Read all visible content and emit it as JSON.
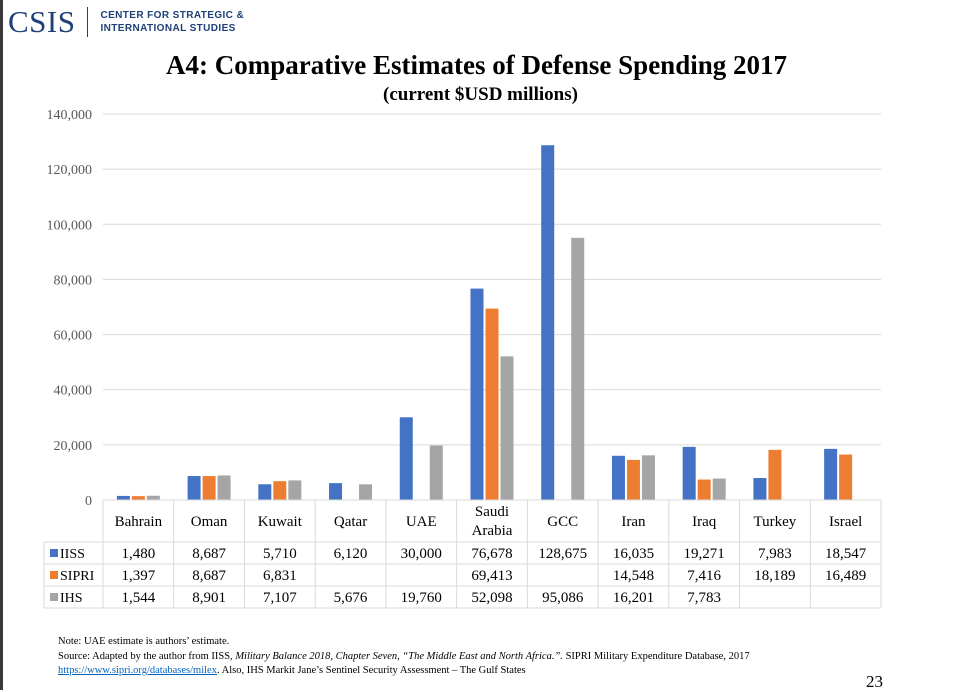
{
  "header": {
    "logo_mark": "CSIS",
    "logo_line1": "CENTER FOR STRATEGIC &",
    "logo_line2": "INTERNATIONAL STUDIES"
  },
  "colors": {
    "IISS": "#4472c4",
    "SIPRI": "#ed7d31",
    "IHS": "#a5a5a5",
    "brand": "#1f3f77"
  },
  "chart_data": {
    "type": "bar",
    "title": "A4: Comparative Estimates of Defense Spending 2017",
    "subtitle": "(current $USD millions)",
    "categories": [
      "Bahrain",
      "Oman",
      "Kuwait",
      "Qatar",
      "UAE",
      "Saudi Arabia",
      "GCC",
      "Iran",
      "Iraq",
      "Turkey",
      "Israel"
    ],
    "series": [
      {
        "name": "IISS",
        "values": [
          1480,
          8687,
          5710,
          6120,
          30000,
          76678,
          128675,
          16035,
          19271,
          7983,
          18547
        ]
      },
      {
        "name": "SIPRI",
        "values": [
          1397,
          8687,
          6831,
          null,
          null,
          69413,
          null,
          14548,
          7416,
          18189,
          16489
        ]
      },
      {
        "name": "IHS",
        "values": [
          1544,
          8901,
          7107,
          5676,
          19760,
          52098,
          95086,
          16201,
          7783,
          null,
          null
        ]
      }
    ],
    "table_values": [
      [
        "1,480",
        "8,687",
        "5,710",
        "6,120",
        "30,000",
        "76,678",
        "128,675",
        "16,035",
        "19,271",
        "7,983",
        "18,547"
      ],
      [
        "1,397",
        "8,687",
        "6,831",
        "",
        "",
        "69,413",
        "",
        "14,548",
        "7,416",
        "18,189",
        "16,489"
      ],
      [
        "1,544",
        "8,901",
        "7,107",
        "5,676",
        "19,760",
        "52,098",
        "95,086",
        "16,201",
        "7,783",
        "",
        ""
      ]
    ],
    "yticks": [
      "0",
      "20,000",
      "40,000",
      "60,000",
      "80,000",
      "100,000",
      "120,000",
      "140,000"
    ],
    "ylim": [
      0,
      140000
    ],
    "grid": true,
    "legend": "data-table"
  },
  "footer": {
    "note": "Note: UAE estimate is authors’ estimate.",
    "source_a": "Source: Adapted by the author from IISS, ",
    "source_b": "Military Balance 2018, Chapter Seven, “The Middle East and North Africa.”.",
    "source_c": " SIPRI Military Expenditure Database, 2017",
    "source_link": "https://www.sipri.org/databases/milex",
    "source_d": ". Also, IHS Markit Jane’s Sentinel Security Assessment – The Gulf States",
    "page_number": "23"
  }
}
